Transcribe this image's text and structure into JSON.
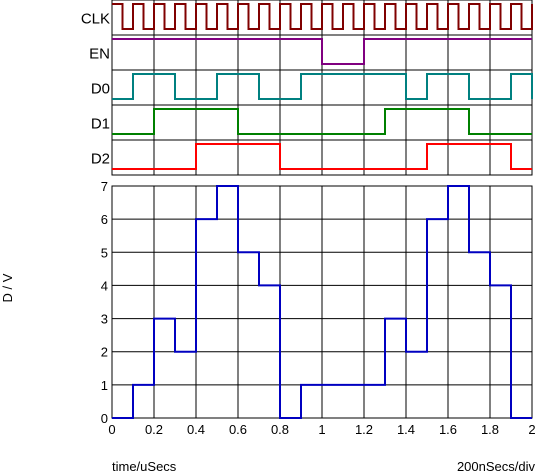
{
  "chart_data": [
    {
      "type": "line",
      "title": "",
      "step": true,
      "traces": [
        {
          "name": "CLK",
          "color": "#800000",
          "period": 0.1,
          "levels": [
            0,
            1
          ]
        },
        {
          "name": "EN",
          "color": "#800080",
          "x": [
            0,
            1.0,
            1.2,
            2.0
          ],
          "y": [
            1,
            0,
            1,
            1
          ]
        },
        {
          "name": "D0",
          "color": "#008080",
          "x": [
            0,
            0.1,
            0.3,
            0.5,
            0.7,
            0.9,
            1.4,
            1.5,
            1.7,
            1.9,
            2.0
          ],
          "y": [
            0,
            1,
            0,
            1,
            0,
            1,
            0,
            1,
            0,
            1,
            0
          ]
        },
        {
          "name": "D1",
          "color": "#008000",
          "x": [
            0,
            0.2,
            0.6,
            1.3,
            1.7,
            2.0
          ],
          "y": [
            0,
            1,
            0,
            1,
            0,
            0
          ]
        },
        {
          "name": "D2",
          "color": "#ff0000",
          "x": [
            0,
            0.4,
            0.8,
            1.5,
            1.9,
            2.0
          ],
          "y": [
            0,
            1,
            0,
            1,
            0,
            0
          ]
        }
      ],
      "xlim": [
        0,
        2
      ],
      "grid": true
    },
    {
      "type": "line",
      "title": "",
      "step": true,
      "series": [
        {
          "color": "#0000c0",
          "x": [
            0,
            0.1,
            0.2,
            0.3,
            0.4,
            0.5,
            0.6,
            0.7,
            0.8,
            0.9,
            1.0,
            1.1,
            1.2,
            1.3,
            1.4,
            1.5,
            1.6,
            1.7,
            1.8,
            1.9,
            2.0
          ],
          "y": [
            0,
            1,
            3,
            2,
            6,
            7,
            5,
            4,
            0,
            1,
            1,
            1,
            1,
            3,
            2,
            6,
            7,
            5,
            4,
            0,
            0
          ]
        }
      ],
      "ylabel": "D / V",
      "xlabel": "time/uSecs",
      "scale_note": "200nSecs/div",
      "xlim": [
        0,
        2
      ],
      "ylim": [
        0,
        7
      ],
      "xticks": [
        "0",
        "0.2",
        "0.4",
        "0.6",
        "0.8",
        "1",
        "1.2",
        "1.4",
        "1.6",
        "1.8",
        "2"
      ],
      "yticks": [
        "0",
        "1",
        "2",
        "3",
        "4",
        "5",
        "6",
        "7"
      ],
      "grid": true
    }
  ],
  "colors": {
    "grid": "#000000",
    "background": "#ffffff"
  }
}
